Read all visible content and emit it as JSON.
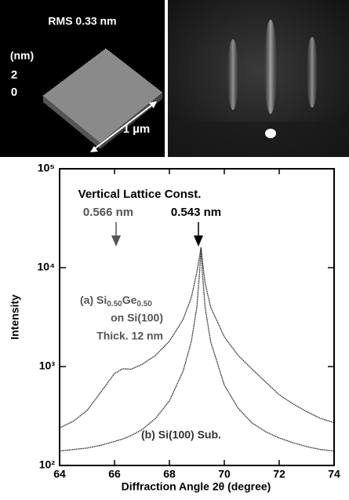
{
  "images": {
    "afm": {
      "rms": "RMS 0.33 nm",
      "z_unit": "(nm)",
      "z_top": "2",
      "z_bottom": "0",
      "scale": "1 µm"
    }
  },
  "chart_data": {
    "type": "line",
    "log_y": true,
    "xlabel": "Diffraction Angle 2θ (degree)",
    "ylabel": "Intensity",
    "annotations": {
      "heading": "Vertical Lattice Const.",
      "const_a": "0.566 nm",
      "const_b": "0.543 nm",
      "sample_a": [
        "(a) Si",
        "0.50",
        "Ge",
        "0.50"
      ],
      "sample_a_2": "on Si(100)",
      "sample_a_3": "Thick. 12 nm",
      "sample_b": "(b) Si(100) Sub."
    },
    "x": [
      64,
      64.5,
      65,
      65.5,
      66,
      66.3,
      66.6,
      67,
      67.5,
      68,
      68.5,
      68.8,
      69,
      69.1,
      69.15,
      69.2,
      69.3,
      69.5,
      70,
      70.5,
      71,
      71.5,
      72,
      72.5,
      73,
      73.5,
      74
    ],
    "series": [
      {
        "color": "#222222",
        "values": [
          240,
          280,
          360,
          550,
          850,
          950,
          940,
          1050,
          1300,
          1800,
          3000,
          5000,
          9000,
          13000,
          16000,
          12000,
          7000,
          4000,
          2000,
          1300,
          950,
          700,
          520,
          420,
          350,
          300,
          270
        ]
      },
      {
        "color": "#222222",
        "values": [
          140,
          145,
          150,
          160,
          175,
          185,
          200,
          230,
          300,
          450,
          900,
          1800,
          4000,
          9000,
          16000,
          9000,
          4000,
          1800,
          650,
          380,
          270,
          220,
          190,
          170,
          155,
          145,
          140
        ]
      }
    ],
    "xlim": [
      64,
      74
    ],
    "xticks": [
      64,
      66,
      68,
      70,
      72,
      74
    ],
    "ylim": [
      100,
      100000
    ],
    "yticks": [
      {
        "value": 100,
        "label": "10²"
      },
      {
        "value": 1000,
        "label": "10³"
      },
      {
        "value": 10000,
        "label": "10⁴"
      },
      {
        "value": 100000,
        "label": "10⁵"
      }
    ]
  }
}
